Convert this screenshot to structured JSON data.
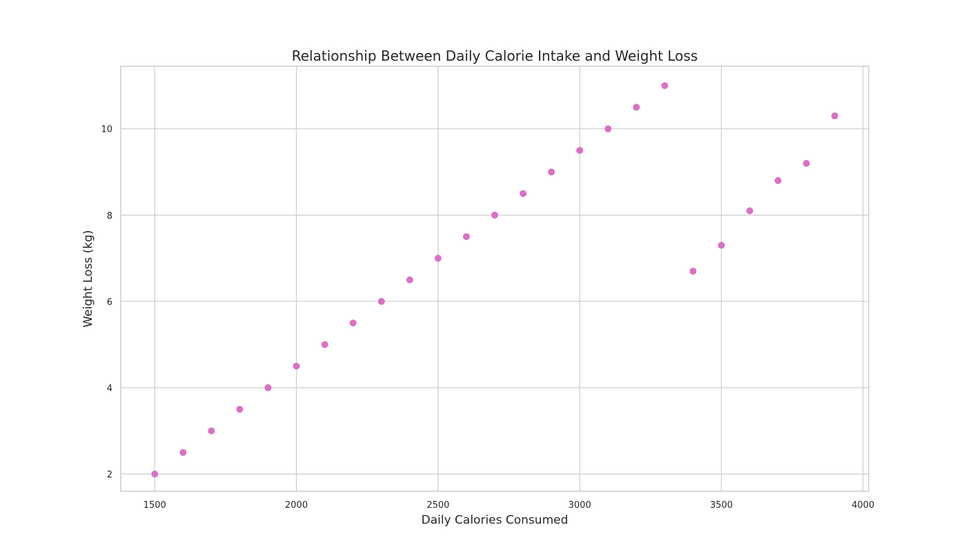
{
  "chart_data": {
    "type": "scatter",
    "title": "Relationship Between Daily Calorie Intake and Weight Loss",
    "xlabel": "Daily Calories Consumed",
    "ylabel": "Weight Loss (kg)",
    "xlim": [
      1380,
      4020
    ],
    "ylim": [
      1.6,
      11.45
    ],
    "xticks": [
      1500,
      2000,
      2500,
      3000,
      3500,
      4000
    ],
    "yticks": [
      2,
      4,
      6,
      8,
      10
    ],
    "grid": true,
    "marker_color": "#DA70C6",
    "x": [
      1500,
      1600,
      1700,
      1800,
      1900,
      2000,
      2100,
      2200,
      2300,
      2400,
      2500,
      2600,
      2700,
      2800,
      2900,
      3000,
      3100,
      3200,
      3300,
      3400,
      3500,
      3600,
      3700,
      3800,
      3900
    ],
    "y": [
      2.0,
      2.5,
      3.0,
      3.5,
      4.0,
      4.5,
      5.0,
      5.5,
      6.0,
      6.5,
      7.0,
      7.5,
      8.0,
      8.5,
      9.0,
      9.5,
      10.0,
      10.5,
      11.0,
      6.7,
      7.3,
      8.1,
      8.8,
      9.2,
      10.3
    ]
  }
}
